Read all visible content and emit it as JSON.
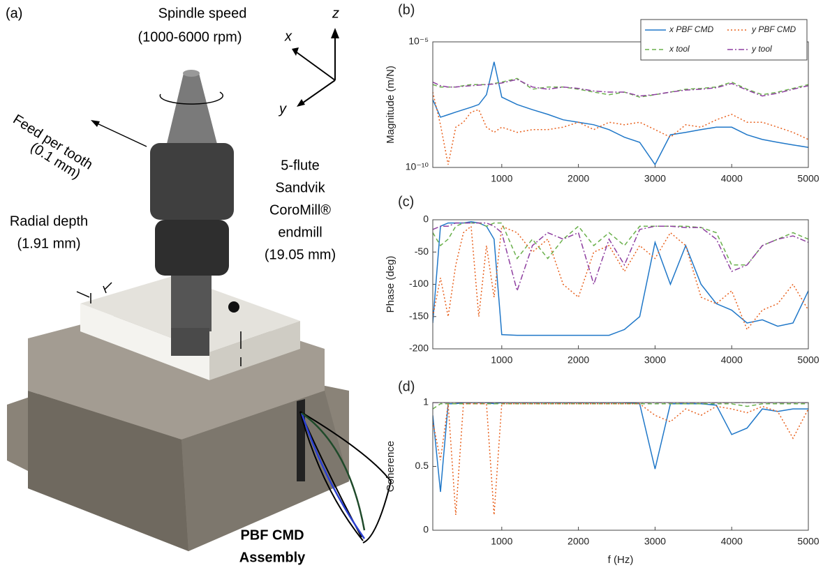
{
  "illustration": {
    "panel_label": "(a)",
    "spindle_speed": "Spindle speed",
    "spindle_range": "(1000-6000 rpm)",
    "axis_x": "x",
    "axis_y": "y",
    "axis_z": "z",
    "feed": "Feed per tooth",
    "feed_value": "(0.1 mm)",
    "radial": "Radial depth",
    "radial_value": "(1.91 mm)",
    "tool_1": "5-flute",
    "tool_2": "Sandvik",
    "tool_3": "CoroMill®",
    "tool_4": "endmill",
    "tool_5": "(19.05 mm)",
    "assembly_1": "PBF CMD",
    "assembly_2": "Assembly"
  },
  "chart_data": [
    {
      "type": "line",
      "panel_label": "(b)",
      "ylabel": "Magnitude (m/N)",
      "log_y": true,
      "legend": "upper right",
      "x": [
        100,
        200,
        300,
        400,
        500,
        600,
        700,
        800,
        900,
        1000,
        1200,
        1400,
        1600,
        1800,
        2000,
        2200,
        2400,
        2600,
        2800,
        3000,
        3200,
        3400,
        3600,
        3800,
        4000,
        4200,
        4400,
        4600,
        4800,
        5000
      ],
      "xlim": [
        100,
        5000
      ],
      "xticks": [
        1000,
        2000,
        3000,
        4000,
        5000
      ],
      "ylim": [
        1e-10,
        1e-05
      ],
      "yticks": [
        {
          "value": 1e-10,
          "label": "10⁻¹⁰"
        },
        {
          "value": 1e-05,
          "label": "10⁻⁵"
        }
      ],
      "series": [
        {
          "name": "x PBF CMD",
          "color": "#1f77c8",
          "style": "solid",
          "values": [
            5e-08,
            1e-08,
            1.26e-08,
            1.6e-08,
            2e-08,
            2.5e-08,
            3.2e-08,
            7.9e-08,
            1.6e-06,
            6.3e-08,
            3.2e-08,
            2e-08,
            1.3e-08,
            7.9e-09,
            6.3e-09,
            5e-09,
            3.2e-09,
            1.6e-09,
            1e-09,
            1.3e-10,
            2e-09,
            2.5e-09,
            3.2e-09,
            4e-09,
            4e-09,
            2e-09,
            1.3e-09,
            1e-09,
            7.9e-10,
            6.3e-10
          ]
        },
        {
          "name": "x tool",
          "color": "#6ab04c",
          "style": "dashed",
          "values": [
            2e-07,
            1.6e-07,
            1.6e-07,
            1.6e-07,
            1.8e-07,
            2e-07,
            2e-07,
            2e-07,
            2.2e-07,
            2.5e-07,
            3.5e-07,
            1.3e-07,
            1.6e-07,
            1.6e-07,
            1.3e-07,
            1e-07,
            7.9e-08,
            1e-07,
            6.3e-08,
            7.9e-08,
            1e-07,
            1.3e-07,
            1.4e-07,
            1.6e-07,
            2.5e-07,
            1.3e-07,
            7.9e-08,
            1e-07,
            1.4e-07,
            2e-07
          ]
        },
        {
          "name": "y PBF CMD",
          "color": "#e8601c",
          "style": "dotted",
          "values": [
            1e-07,
            5e-09,
            1.3e-10,
            4e-09,
            6.3e-09,
            1.6e-08,
            2e-08,
            4e-09,
            2.5e-09,
            4e-09,
            2.5e-09,
            3.2e-09,
            3.2e-09,
            4e-09,
            6.3e-09,
            3.2e-09,
            6.3e-09,
            5e-09,
            6.3e-09,
            3.2e-09,
            1.6e-09,
            5e-09,
            4e-09,
            7.9e-09,
            1.3e-08,
            6.3e-09,
            6.3e-09,
            4e-09,
            2.5e-09,
            1.3e-09
          ]
        },
        {
          "name": "y tool",
          "color": "#8e3fa0",
          "style": "dashdot",
          "values": [
            2.5e-07,
            1.8e-07,
            1.6e-07,
            1.6e-07,
            1.7e-07,
            1.8e-07,
            1.9e-07,
            2e-07,
            2.1e-07,
            2.3e-07,
            3.2e-07,
            1.6e-07,
            1.3e-07,
            1.6e-07,
            1.4e-07,
            1.1e-07,
            1e-07,
            1e-07,
            7e-08,
            8e-08,
            1e-07,
            1.2e-07,
            1.3e-07,
            1.5e-07,
            2.2e-07,
            1.2e-07,
            7e-08,
            9e-08,
            1.3e-07,
            1.8e-07
          ]
        }
      ]
    },
    {
      "type": "line",
      "panel_label": "(c)",
      "ylabel": "Phase (deg)",
      "x": [
        100,
        200,
        300,
        400,
        500,
        600,
        700,
        800,
        900,
        1000,
        1200,
        1400,
        1600,
        1800,
        2000,
        2200,
        2400,
        2600,
        2800,
        3000,
        3200,
        3400,
        3600,
        3800,
        4000,
        4200,
        4400,
        4600,
        4800,
        5000
      ],
      "xlim": [
        100,
        5000
      ],
      "xticks": [
        1000,
        2000,
        3000,
        4000,
        5000
      ],
      "ylim": [
        -200,
        0
      ],
      "yticks": [
        -200,
        -150,
        -100,
        -50,
        0
      ],
      "series": [
        {
          "color": "#1f77c8",
          "style": "solid",
          "values": [
            -160,
            -10,
            -5,
            -5,
            -5,
            -3,
            -5,
            -10,
            -30,
            -178,
            -179,
            -179,
            -179,
            -179,
            -179,
            -179,
            -179,
            -170,
            -150,
            -35,
            -100,
            -40,
            -100,
            -130,
            -140,
            -160,
            -155,
            -165,
            -160,
            -110
          ]
        },
        {
          "color": "#6ab04c",
          "style": "dashed",
          "values": [
            -20,
            -40,
            -30,
            -10,
            -5,
            -5,
            -5,
            -10,
            -5,
            -5,
            -60,
            -30,
            -60,
            -30,
            -10,
            -40,
            -20,
            -40,
            -10,
            -10,
            -10,
            -10,
            -12,
            -20,
            -70,
            -70,
            -40,
            -30,
            -20,
            -30
          ]
        },
        {
          "color": "#e8601c",
          "style": "dotted",
          "values": [
            -150,
            -90,
            -150,
            -70,
            -20,
            -10,
            -150,
            -40,
            -120,
            -10,
            -20,
            -50,
            -30,
            -100,
            -120,
            -50,
            -40,
            -80,
            -40,
            -60,
            -20,
            -40,
            -120,
            -130,
            -110,
            -170,
            -140,
            -130,
            -100,
            -140
          ]
        },
        {
          "color": "#8e3fa0",
          "style": "dashdot",
          "values": [
            -15,
            -10,
            -10,
            -5,
            -5,
            -5,
            -5,
            -5,
            -10,
            -20,
            -110,
            -40,
            -20,
            -30,
            -20,
            -100,
            -30,
            -70,
            -15,
            -10,
            -10,
            -12,
            -12,
            -30,
            -80,
            -70,
            -40,
            -30,
            -25,
            -35
          ]
        }
      ]
    },
    {
      "type": "line",
      "panel_label": "(d)",
      "ylabel": "Coherence",
      "xlabel": "f (Hz)",
      "x": [
        100,
        200,
        300,
        400,
        500,
        600,
        700,
        800,
        900,
        1000,
        1200,
        1400,
        1600,
        1800,
        2000,
        2200,
        2400,
        2600,
        2800,
        3000,
        3200,
        3400,
        3600,
        3800,
        4000,
        4200,
        4400,
        4600,
        4800,
        5000
      ],
      "xlim": [
        100,
        5000
      ],
      "xticks": [
        1000,
        2000,
        3000,
        4000,
        5000
      ],
      "ylim": [
        0,
        1
      ],
      "yticks": [
        0,
        0.5,
        1
      ],
      "series": [
        {
          "color": "#1f77c8",
          "style": "solid",
          "values": [
            0.9,
            0.3,
            0.99,
            0.99,
            1,
            1,
            1,
            1,
            0.99,
            1,
            1,
            1,
            1,
            1,
            1,
            1,
            1,
            1,
            0.99,
            0.48,
            0.99,
            0.99,
            0.99,
            0.98,
            0.75,
            0.8,
            0.95,
            0.93,
            0.95,
            0.95
          ]
        },
        {
          "color": "#6ab04c",
          "style": "dashed",
          "values": [
            0.95,
            0.99,
            0.99,
            0.99,
            0.99,
            0.99,
            0.99,
            0.99,
            0.99,
            0.99,
            0.99,
            0.99,
            0.99,
            0.99,
            0.99,
            0.99,
            0.99,
            0.99,
            0.99,
            0.99,
            0.99,
            0.99,
            0.99,
            0.99,
            0.99,
            0.97,
            0.99,
            0.99,
            0.99,
            0.99
          ]
        },
        {
          "color": "#e8601c",
          "style": "dotted",
          "values": [
            0.85,
            0.55,
            0.99,
            0.12,
            0.99,
            0.99,
            0.99,
            0.99,
            0.12,
            0.99,
            0.99,
            0.99,
            0.99,
            0.99,
            0.99,
            0.99,
            0.99,
            0.99,
            0.99,
            0.9,
            0.85,
            0.95,
            0.9,
            0.97,
            0.95,
            0.92,
            0.97,
            0.93,
            0.72,
            0.95
          ]
        },
        {
          "color": "#8e3fa0",
          "style": "dashdot",
          "values": [
            1,
            1,
            1,
            1,
            1,
            1,
            1,
            1,
            1,
            1,
            1,
            1,
            1,
            1,
            1,
            1,
            1,
            1,
            1,
            1,
            1,
            1,
            1,
            1,
            1,
            1,
            1,
            1,
            1,
            1
          ]
        }
      ]
    }
  ]
}
